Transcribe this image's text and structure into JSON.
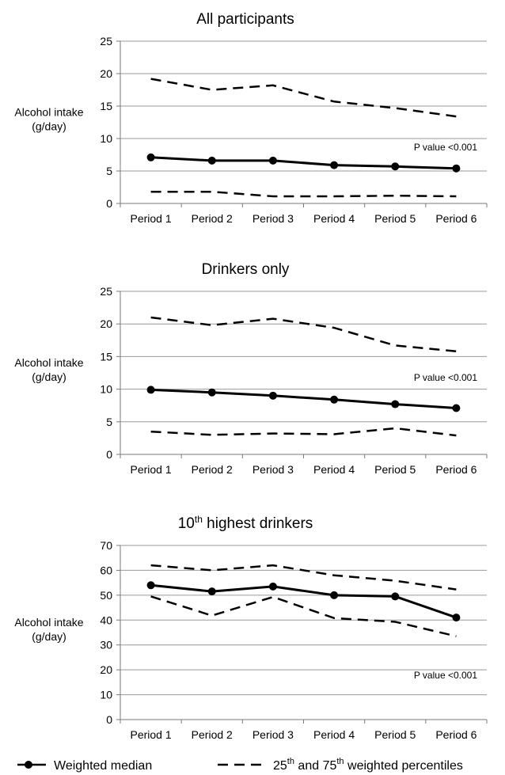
{
  "legend": {
    "median_label": "Weighted  median",
    "percentile_label_pre": "25",
    "percentile_sup1": "th",
    "percentile_label_mid": " and 75",
    "percentile_sup2": "th",
    "percentile_label_post": " weighted percentiles"
  },
  "chart_data": [
    {
      "type": "line",
      "title": "All participants",
      "title_sup": "",
      "title_rest": "",
      "ylabel_line1": "Alcohol intake",
      "ylabel_line2": "(g/day)",
      "annotation": "P value <0.001",
      "categories": [
        "Period 1",
        "Period 2",
        "Period 3",
        "Period 4",
        "Period 5",
        "Period 6"
      ],
      "ylim": [
        0,
        25
      ],
      "yticks": [
        0,
        5,
        10,
        15,
        20,
        25
      ],
      "grid": true,
      "series": [
        {
          "name": "Weighted median",
          "style": "solid-marker",
          "values": [
            7.1,
            6.6,
            6.6,
            5.9,
            5.7,
            5.4
          ]
        },
        {
          "name": "75th weighted percentile",
          "style": "dashed",
          "values": [
            19.2,
            17.5,
            18.2,
            15.7,
            14.7,
            13.4
          ]
        },
        {
          "name": "25th weighted percentile",
          "style": "dashed",
          "values": [
            1.8,
            1.8,
            1.1,
            1.1,
            1.2,
            1.1
          ]
        }
      ]
    },
    {
      "type": "line",
      "title": "Drinkers only",
      "title_sup": "",
      "title_rest": "",
      "ylabel_line1": "Alcohol intake",
      "ylabel_line2": "(g/day)",
      "annotation": "P value <0.001",
      "categories": [
        "Period 1",
        "Period 2",
        "Period 3",
        "Period 4",
        "Period 5",
        "Period 6"
      ],
      "ylim": [
        0,
        25
      ],
      "yticks": [
        0,
        5,
        10,
        15,
        20,
        25
      ],
      "grid": true,
      "series": [
        {
          "name": "Weighted median",
          "style": "solid-marker",
          "values": [
            9.9,
            9.5,
            9.0,
            8.4,
            7.7,
            7.1
          ]
        },
        {
          "name": "75th weighted percentile",
          "style": "dashed",
          "values": [
            21.0,
            19.8,
            20.8,
            19.4,
            16.7,
            15.8
          ]
        },
        {
          "name": "25th weighted percentile",
          "style": "dashed",
          "values": [
            3.5,
            3.0,
            3.2,
            3.1,
            4.0,
            2.9
          ]
        }
      ]
    },
    {
      "type": "line",
      "title": "10",
      "title_sup": "th",
      "title_rest": " highest drinkers",
      "ylabel_line1": "Alcohol intake",
      "ylabel_line2": "(g/day)",
      "annotation": "P value <0.001",
      "categories": [
        "Period 1",
        "Period 2",
        "Period 3",
        "Period 4",
        "Period 5",
        "Period 6"
      ],
      "ylim": [
        0,
        70
      ],
      "yticks": [
        0,
        10,
        20,
        30,
        40,
        50,
        60,
        70
      ],
      "grid": true,
      "series": [
        {
          "name": "Weighted median",
          "style": "solid-marker",
          "values": [
            54.0,
            51.5,
            53.5,
            50.0,
            49.5,
            41.0
          ]
        },
        {
          "name": "75th weighted percentile",
          "style": "dashed",
          "values": [
            62.0,
            60.0,
            62.0,
            58.0,
            55.8,
            52.3
          ]
        },
        {
          "name": "25th weighted percentile",
          "style": "dashed",
          "values": [
            49.5,
            41.8,
            49.3,
            40.8,
            39.3,
            33.5
          ]
        }
      ]
    }
  ]
}
